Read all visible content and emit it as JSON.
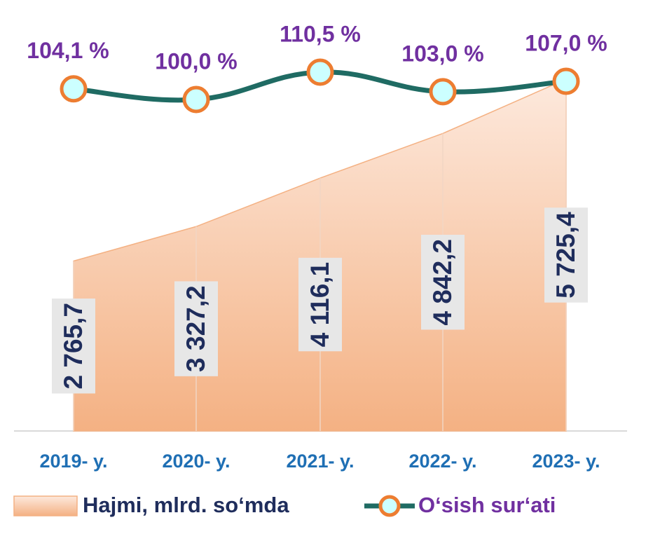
{
  "chart_data": {
    "type": "area-line",
    "categories": [
      "2019- y.",
      "2020- y.",
      "2021- y.",
      "2022- y.",
      "2023- y."
    ],
    "series": [
      {
        "name": "Hajmi, mlrd. so‘mda",
        "color": "#f4b183",
        "values": [
          2765.7,
          3327.2,
          4116.1,
          4842.2,
          5725.4
        ],
        "value_labels": [
          "2 765,7",
          "3 327,2",
          "4 116,1",
          "4 842,2",
          "5 725,4"
        ]
      },
      {
        "name": "O‘sish sur‘ati",
        "color": "#1f6b63",
        "marker_color": "#ed7d31",
        "values": [
          104.1,
          100.0,
          110.5,
          103.0,
          107.0
        ],
        "value_labels": [
          "104,1 %",
          "100,0 %",
          "110,5 %",
          "103,0 %",
          "107,0 %"
        ]
      }
    ]
  }
}
